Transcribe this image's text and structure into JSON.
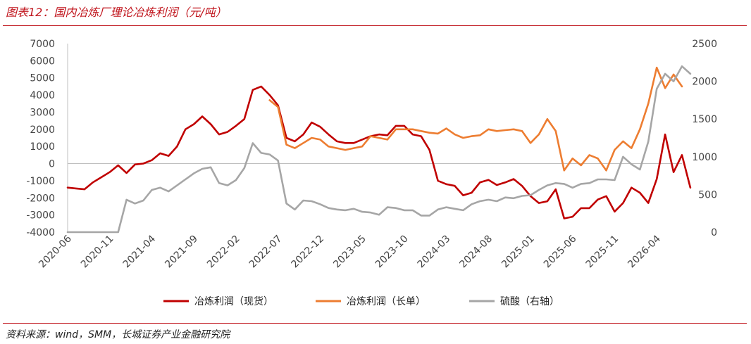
{
  "header": {
    "title": "图表12：国内冶炼厂理论冶炼利润（元/吨）"
  },
  "footer": {
    "source": "资料来源：wind，SMM，长城证券产业金融研究院"
  },
  "colors": {
    "spot": "#c00000",
    "long": "#ed7d31",
    "acid": "#a6a6a6",
    "accent": "#c0141c"
  },
  "chart_data": {
    "type": "line",
    "title": "",
    "grid": false,
    "legend_position": "bottom",
    "y_left": {
      "range": [
        -4000,
        7000
      ],
      "ticks": [
        7000,
        6000,
        5000,
        4000,
        3000,
        2000,
        1000,
        0,
        -1000,
        -2000,
        -3000,
        -4000
      ]
    },
    "y_right": {
      "range": [
        0,
        2500
      ],
      "ticks": [
        2500,
        2000,
        1500,
        1000,
        500,
        0
      ]
    },
    "x_range": [
      "2020-06",
      "2026-07"
    ],
    "x_ticks": [
      "2020-06",
      "2020-11",
      "2021-04",
      "2021-09",
      "2022-02",
      "2022-07",
      "2022-12",
      "2023-05",
      "2023-10",
      "2024-03",
      "2024-08",
      "2025-01",
      "2025-06",
      "2025-11",
      "2026-04"
    ],
    "series": [
      {
        "name": "冶炼利润（现货）",
        "axis": "left",
        "color": "#c00000",
        "points": [
          [
            "2020-06",
            -1400
          ],
          [
            "2020-07",
            -1450
          ],
          [
            "2020-08",
            -1500
          ],
          [
            "2020-09",
            -1100
          ],
          [
            "2020-10",
            -800
          ],
          [
            "2020-11",
            -500
          ],
          [
            "2020-12",
            -100
          ],
          [
            "2021-01",
            -550
          ],
          [
            "2021-02",
            -50
          ],
          [
            "2021-03",
            0
          ],
          [
            "2021-04",
            200
          ],
          [
            "2021-05",
            600
          ],
          [
            "2021-06",
            450
          ],
          [
            "2021-07",
            1000
          ],
          [
            "2021-08",
            2000
          ],
          [
            "2021-09",
            2300
          ],
          [
            "2021-10",
            2750
          ],
          [
            "2021-11",
            2300
          ],
          [
            "2021-12",
            1700
          ],
          [
            "2022-01",
            1850
          ],
          [
            "2022-02",
            2200
          ],
          [
            "2022-03",
            2600
          ],
          [
            "2022-04",
            4300
          ],
          [
            "2022-05",
            4500
          ],
          [
            "2022-06",
            4000
          ],
          [
            "2022-07",
            3400
          ],
          [
            "2022-08",
            1500
          ],
          [
            "2022-09",
            1300
          ],
          [
            "2022-10",
            1700
          ],
          [
            "2022-11",
            2400
          ],
          [
            "2022-12",
            2150
          ],
          [
            "2023-01",
            1700
          ],
          [
            "2023-02",
            1300
          ],
          [
            "2023-03",
            1200
          ],
          [
            "2023-04",
            1200
          ],
          [
            "2023-05",
            1400
          ],
          [
            "2023-06",
            1600
          ],
          [
            "2023-07",
            1700
          ],
          [
            "2023-08",
            1650
          ],
          [
            "2023-09",
            2200
          ],
          [
            "2023-10",
            2200
          ],
          [
            "2023-11",
            1700
          ],
          [
            "2023-12",
            1600
          ],
          [
            "2024-01",
            800
          ],
          [
            "2024-02",
            -1000
          ],
          [
            "2024-03",
            -1200
          ],
          [
            "2024-04",
            -1300
          ],
          [
            "2024-05",
            -1850
          ],
          [
            "2024-06",
            -1700
          ],
          [
            "2024-07",
            -1100
          ],
          [
            "2024-08",
            -950
          ],
          [
            "2024-09",
            -1250
          ],
          [
            "2024-10",
            -1100
          ],
          [
            "2024-11",
            -900
          ],
          [
            "2024-12",
            -1300
          ],
          [
            "2025-01",
            -1900
          ],
          [
            "2025-02",
            -2300
          ],
          [
            "2025-03",
            -2200
          ],
          [
            "2025-04",
            -1500
          ],
          [
            "2025-05",
            -3200
          ],
          [
            "2025-06",
            -3100
          ],
          [
            "2025-07",
            -2600
          ],
          [
            "2025-08",
            -2600
          ],
          [
            "2025-09",
            -2100
          ],
          [
            "2025-10",
            -1900
          ],
          [
            "2025-11",
            -2800
          ],
          [
            "2025-12",
            -2300
          ],
          [
            "2026-01",
            -1400
          ],
          [
            "2026-02",
            -1700
          ],
          [
            "2026-03",
            -2300
          ],
          [
            "2026-04",
            -900
          ],
          [
            "2026-05",
            1700
          ],
          [
            "2026-06",
            -500
          ],
          [
            "2026-07",
            500
          ],
          [
            "2026-08",
            -1400
          ]
        ]
      },
      {
        "name": "冶炼利润（长单）",
        "axis": "left",
        "color": "#ed7d31",
        "points": [
          [
            "2022-06",
            3700
          ],
          [
            "2022-07",
            3300
          ],
          [
            "2022-08",
            1100
          ],
          [
            "2022-09",
            900
          ],
          [
            "2022-10",
            1200
          ],
          [
            "2022-11",
            1500
          ],
          [
            "2022-12",
            1400
          ],
          [
            "2023-01",
            1000
          ],
          [
            "2023-02",
            900
          ],
          [
            "2023-03",
            800
          ],
          [
            "2023-04",
            900
          ],
          [
            "2023-05",
            1000
          ],
          [
            "2023-06",
            1600
          ],
          [
            "2023-07",
            1500
          ],
          [
            "2023-08",
            1400
          ],
          [
            "2023-09",
            2000
          ],
          [
            "2023-10",
            2000
          ],
          [
            "2023-11",
            2000
          ],
          [
            "2023-12",
            1900
          ],
          [
            "2024-01",
            1800
          ],
          [
            "2024-02",
            1750
          ],
          [
            "2024-03",
            2050
          ],
          [
            "2024-04",
            1700
          ],
          [
            "2024-05",
            1500
          ],
          [
            "2024-06",
            1600
          ],
          [
            "2024-07",
            1650
          ],
          [
            "2024-08",
            2000
          ],
          [
            "2024-09",
            1900
          ],
          [
            "2024-10",
            1950
          ],
          [
            "2024-11",
            2000
          ],
          [
            "2024-12",
            1900
          ],
          [
            "2025-01",
            1200
          ],
          [
            "2025-02",
            1700
          ],
          [
            "2025-03",
            2600
          ],
          [
            "2025-04",
            1900
          ],
          [
            "2025-05",
            -400
          ],
          [
            "2025-06",
            300
          ],
          [
            "2025-07",
            -100
          ],
          [
            "2025-08",
            500
          ],
          [
            "2025-09",
            300
          ],
          [
            "2025-10",
            -400
          ],
          [
            "2025-11",
            800
          ],
          [
            "2025-12",
            1300
          ],
          [
            "2026-01",
            900
          ],
          [
            "2026-02",
            2000
          ],
          [
            "2026-03",
            3500
          ],
          [
            "2026-04",
            5600
          ],
          [
            "2026-05",
            4400
          ],
          [
            "2026-06",
            5200
          ],
          [
            "2026-07",
            4500
          ]
        ]
      },
      {
        "name": "硫酸（右轴）",
        "axis": "right",
        "color": "#a6a6a6",
        "points": [
          [
            "2020-06",
            0
          ],
          [
            "2020-09",
            0
          ],
          [
            "2020-12",
            0
          ],
          [
            "2021-01",
            430
          ],
          [
            "2021-02",
            380
          ],
          [
            "2021-03",
            420
          ],
          [
            "2021-04",
            560
          ],
          [
            "2021-05",
            590
          ],
          [
            "2021-06",
            540
          ],
          [
            "2021-07",
            620
          ],
          [
            "2021-08",
            700
          ],
          [
            "2021-09",
            780
          ],
          [
            "2021-10",
            840
          ],
          [
            "2021-11",
            860
          ],
          [
            "2021-12",
            650
          ],
          [
            "2022-01",
            620
          ],
          [
            "2022-02",
            690
          ],
          [
            "2022-03",
            850
          ],
          [
            "2022-04",
            1180
          ],
          [
            "2022-05",
            1050
          ],
          [
            "2022-06",
            1030
          ],
          [
            "2022-07",
            950
          ],
          [
            "2022-08",
            380
          ],
          [
            "2022-09",
            300
          ],
          [
            "2022-10",
            420
          ],
          [
            "2022-11",
            410
          ],
          [
            "2022-12",
            370
          ],
          [
            "2023-01",
            320
          ],
          [
            "2023-02",
            300
          ],
          [
            "2023-03",
            290
          ],
          [
            "2023-04",
            310
          ],
          [
            "2023-05",
            270
          ],
          [
            "2023-06",
            260
          ],
          [
            "2023-07",
            230
          ],
          [
            "2023-08",
            330
          ],
          [
            "2023-09",
            320
          ],
          [
            "2023-10",
            290
          ],
          [
            "2023-11",
            290
          ],
          [
            "2023-12",
            220
          ],
          [
            "2024-01",
            220
          ],
          [
            "2024-02",
            300
          ],
          [
            "2024-03",
            330
          ],
          [
            "2024-04",
            310
          ],
          [
            "2024-05",
            290
          ],
          [
            "2024-06",
            370
          ],
          [
            "2024-07",
            410
          ],
          [
            "2024-08",
            430
          ],
          [
            "2024-09",
            410
          ],
          [
            "2024-10",
            460
          ],
          [
            "2024-11",
            450
          ],
          [
            "2024-12",
            480
          ],
          [
            "2025-01",
            490
          ],
          [
            "2025-02",
            560
          ],
          [
            "2025-03",
            620
          ],
          [
            "2025-04",
            650
          ],
          [
            "2025-05",
            640
          ],
          [
            "2025-06",
            590
          ],
          [
            "2025-07",
            640
          ],
          [
            "2025-08",
            650
          ],
          [
            "2025-09",
            700
          ],
          [
            "2025-10",
            700
          ],
          [
            "2025-11",
            690
          ],
          [
            "2025-12",
            1000
          ],
          [
            "2026-01",
            900
          ],
          [
            "2026-02",
            830
          ],
          [
            "2026-03",
            1200
          ],
          [
            "2026-04",
            1900
          ],
          [
            "2026-05",
            2100
          ],
          [
            "2026-06",
            2000
          ],
          [
            "2026-07",
            2200
          ],
          [
            "2026-08",
            2100
          ]
        ]
      }
    ]
  }
}
